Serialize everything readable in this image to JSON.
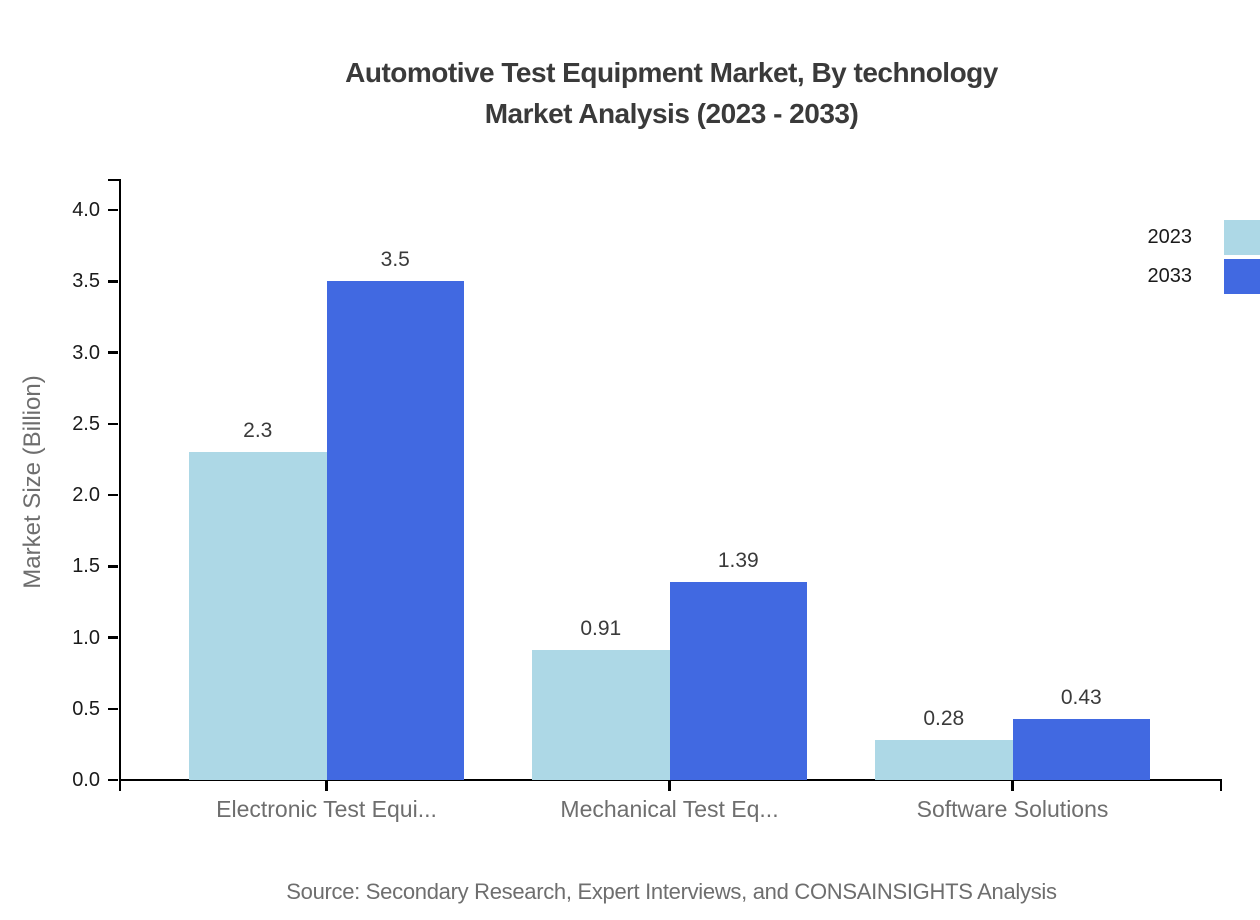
{
  "chart_data": {
    "type": "bar",
    "title": "Automotive Test Equipment Market, By technology",
    "subtitle": "Market Analysis (2023 - 2033)",
    "ylabel": "Market Size (Billion)",
    "categories": [
      "Electronic Test Equi...",
      "Mechanical Test Eq...",
      "Software Solutions"
    ],
    "series": [
      {
        "name": "2023",
        "color": "#add8e6",
        "values": [
          2.3,
          0.91,
          0.28
        ]
      },
      {
        "name": "2033",
        "color": "#4169e1",
        "values": [
          3.5,
          1.39,
          0.43
        ]
      }
    ],
    "value_labels": [
      [
        "2.3",
        "0.91",
        "0.28"
      ],
      [
        "3.5",
        "1.39",
        "0.43"
      ]
    ],
    "yticks": [
      0.0,
      0.5,
      1.0,
      1.5,
      2.0,
      2.5,
      3.0,
      3.5,
      4.0
    ],
    "ylim": [
      0,
      4.2
    ],
    "grid": false,
    "legend_position": "top-right",
    "source": "Source: Secondary Research, Expert Interviews, and CONSAINSIGHTS Analysis"
  },
  "colors": {
    "title_text": "#3a3a3a",
    "tick_text": "#1a1a1a",
    "muted_text": "#6e6e6e",
    "axis_line": "#000000"
  }
}
